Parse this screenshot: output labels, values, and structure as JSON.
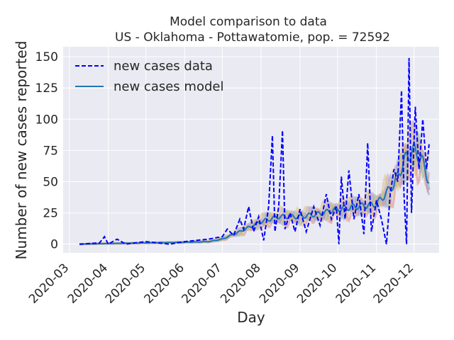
{
  "chart_data": {
    "type": "line",
    "title_line1": "Model comparison to data",
    "title_line2": "US - Oklahoma - Pottawatomie, pop. = 72592",
    "xlabel": "Day",
    "ylabel": "Number of new cases reported",
    "x_range": [
      "2020-02-25",
      "2020-12-21"
    ],
    "ylim": [
      -7,
      158
    ],
    "x_ticks": [
      "2020-03-01",
      "2020-04-01",
      "2020-05-01",
      "2020-06-01",
      "2020-07-01",
      "2020-08-01",
      "2020-09-01",
      "2020-10-01",
      "2020-11-01",
      "2020-12-01"
    ],
    "x_tick_labels": [
      "2020-03",
      "2020-04",
      "2020-05",
      "2020-06",
      "2020-07",
      "2020-08",
      "2020-09",
      "2020-10",
      "2020-11",
      "2020-12"
    ],
    "y_ticks": [
      0,
      25,
      50,
      75,
      100,
      125,
      150
    ],
    "grid": true,
    "legend_position": "upper-left",
    "colors": {
      "background": "#eaeaf2",
      "grid": "#ffffff",
      "data_line": "#0000ff",
      "model_line": "#1f77b4",
      "ensemble": [
        "#d98a8a",
        "#e8b77a",
        "#8fb8a0",
        "#9a9fd0",
        "#c7a0c8",
        "#d9c27a"
      ]
    },
    "series": [
      {
        "name": "new cases data",
        "style": "dashed",
        "anchors": [
          [
            "2020-03-09",
            0
          ],
          [
            "2020-03-25",
            1
          ],
          [
            "2020-03-29",
            6
          ],
          [
            "2020-04-01",
            0
          ],
          [
            "2020-04-08",
            4
          ],
          [
            "2020-04-15",
            0
          ],
          [
            "2020-05-01",
            2
          ],
          [
            "2020-05-20",
            0
          ],
          [
            "2020-06-01",
            2
          ],
          [
            "2020-06-10",
            3
          ],
          [
            "2020-06-20",
            4
          ],
          [
            "2020-07-01",
            6
          ],
          [
            "2020-07-05",
            12
          ],
          [
            "2020-07-10",
            7
          ],
          [
            "2020-07-15",
            20
          ],
          [
            "2020-07-18",
            12
          ],
          [
            "2020-07-22",
            30
          ],
          [
            "2020-07-26",
            10
          ],
          [
            "2020-07-30",
            22
          ],
          [
            "2020-08-03",
            3
          ],
          [
            "2020-08-07",
            30
          ],
          [
            "2020-08-10",
            87
          ],
          [
            "2020-08-12",
            10
          ],
          [
            "2020-08-15",
            30
          ],
          [
            "2020-08-18",
            91
          ],
          [
            "2020-08-20",
            12
          ],
          [
            "2020-08-24",
            25
          ],
          [
            "2020-08-28",
            10
          ],
          [
            "2020-09-01",
            28
          ],
          [
            "2020-09-06",
            10
          ],
          [
            "2020-09-12",
            30
          ],
          [
            "2020-09-17",
            15
          ],
          [
            "2020-09-22",
            40
          ],
          [
            "2020-09-26",
            20
          ],
          [
            "2020-09-30",
            30
          ],
          [
            "2020-10-02",
            0
          ],
          [
            "2020-10-04",
            54
          ],
          [
            "2020-10-07",
            20
          ],
          [
            "2020-10-10",
            59
          ],
          [
            "2020-10-14",
            20
          ],
          [
            "2020-10-18",
            40
          ],
          [
            "2020-10-22",
            8
          ],
          [
            "2020-10-25",
            81
          ],
          [
            "2020-10-28",
            10
          ],
          [
            "2020-11-01",
            35
          ],
          [
            "2020-11-05",
            20
          ],
          [
            "2020-11-09",
            0
          ],
          [
            "2020-11-12",
            40
          ],
          [
            "2020-11-15",
            60
          ],
          [
            "2020-11-18",
            50
          ],
          [
            "2020-11-21",
            123
          ],
          [
            "2020-11-23",
            40
          ],
          [
            "2020-11-25",
            0
          ],
          [
            "2020-11-27",
            149
          ],
          [
            "2020-11-29",
            25
          ],
          [
            "2020-12-02",
            110
          ],
          [
            "2020-12-05",
            60
          ],
          [
            "2020-12-08",
            100
          ],
          [
            "2020-12-11",
            60
          ],
          [
            "2020-12-13",
            80
          ]
        ]
      },
      {
        "name": "new cases model",
        "style": "solid",
        "anchors": [
          [
            "2020-03-09",
            0
          ],
          [
            "2020-04-01",
            0.5
          ],
          [
            "2020-05-01",
            1
          ],
          [
            "2020-06-01",
            1.5
          ],
          [
            "2020-06-20",
            2
          ],
          [
            "2020-07-01",
            4
          ],
          [
            "2020-07-15",
            10
          ],
          [
            "2020-08-01",
            18
          ],
          [
            "2020-08-15",
            22
          ],
          [
            "2020-09-01",
            22
          ],
          [
            "2020-09-15",
            24
          ],
          [
            "2020-10-01",
            28
          ],
          [
            "2020-10-15",
            30
          ],
          [
            "2020-11-01",
            32
          ],
          [
            "2020-11-15",
            48
          ],
          [
            "2020-11-25",
            70
          ],
          [
            "2020-12-01",
            75
          ],
          [
            "2020-12-07",
            68
          ],
          [
            "2020-12-13",
            50
          ]
        ]
      }
    ]
  }
}
